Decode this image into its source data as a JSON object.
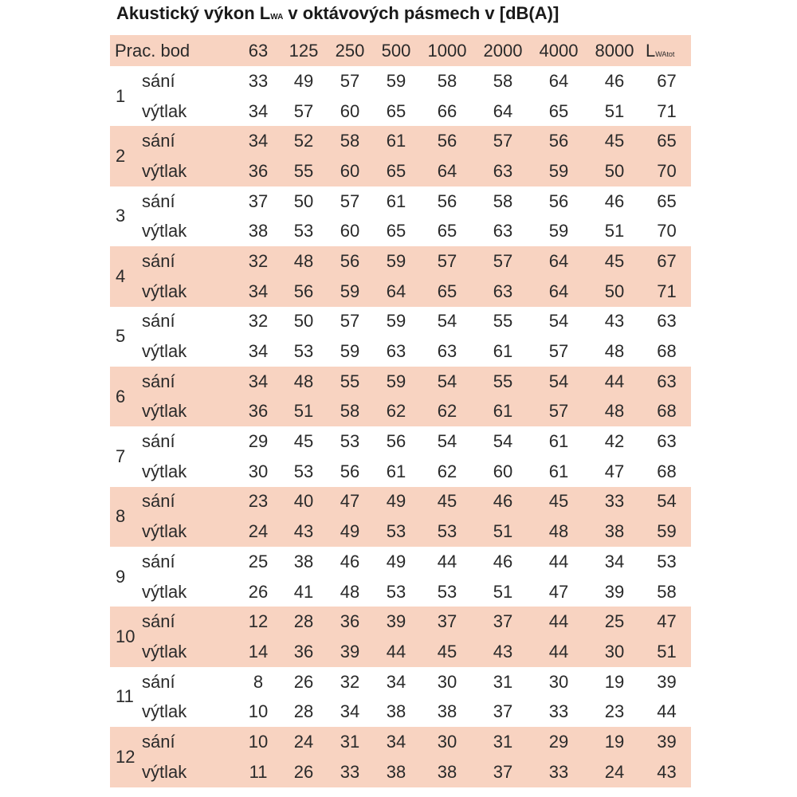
{
  "title": {
    "prefix": "Akustický výkon L",
    "sub": "WA",
    "suffix": " v oktávových pásmech v [dB(A)]"
  },
  "colors": {
    "shade": "#f8d3c1",
    "text": "#2a2a2a"
  },
  "chart_data": {
    "type": "table",
    "title": "Akustický výkon LWA v oktávových pásmech v [dB(A)]",
    "header": {
      "first": "Prac. bod",
      "bands": [
        "63",
        "125",
        "250",
        "500",
        "1000",
        "2000",
        "4000",
        "8000"
      ],
      "total_main": "L",
      "total_sub": "WAtot"
    },
    "rows": [
      {
        "point": "1",
        "rows": [
          {
            "type": "sání",
            "values": [
              33,
              49,
              57,
              59,
              58,
              58,
              64,
              46,
              67
            ]
          },
          {
            "type": "výtlak",
            "values": [
              34,
              57,
              60,
              65,
              66,
              64,
              65,
              51,
              71
            ]
          }
        ]
      },
      {
        "point": "2",
        "rows": [
          {
            "type": "sání",
            "values": [
              34,
              52,
              58,
              61,
              56,
              57,
              56,
              45,
              65
            ]
          },
          {
            "type": "výtlak",
            "values": [
              36,
              55,
              60,
              65,
              64,
              63,
              59,
              50,
              70
            ]
          }
        ]
      },
      {
        "point": "3",
        "rows": [
          {
            "type": "sání",
            "values": [
              37,
              50,
              57,
              61,
              56,
              58,
              56,
              46,
              65
            ]
          },
          {
            "type": "výtlak",
            "values": [
              38,
              53,
              60,
              65,
              65,
              63,
              59,
              51,
              70
            ]
          }
        ]
      },
      {
        "point": "4",
        "rows": [
          {
            "type": "sání",
            "values": [
              32,
              48,
              56,
              59,
              57,
              57,
              64,
              45,
              67
            ]
          },
          {
            "type": "výtlak",
            "values": [
              34,
              56,
              59,
              64,
              65,
              63,
              64,
              50,
              71
            ]
          }
        ]
      },
      {
        "point": "5",
        "rows": [
          {
            "type": "sání",
            "values": [
              32,
              50,
              57,
              59,
              54,
              55,
              54,
              43,
              63
            ]
          },
          {
            "type": "výtlak",
            "values": [
              34,
              53,
              59,
              63,
              63,
              61,
              57,
              48,
              68
            ]
          }
        ]
      },
      {
        "point": "6",
        "rows": [
          {
            "type": "sání",
            "values": [
              34,
              48,
              55,
              59,
              54,
              55,
              54,
              44,
              63
            ]
          },
          {
            "type": "výtlak",
            "values": [
              36,
              51,
              58,
              62,
              62,
              61,
              57,
              48,
              68
            ]
          }
        ]
      },
      {
        "point": "7",
        "rows": [
          {
            "type": "sání",
            "values": [
              29,
              45,
              53,
              56,
              54,
              54,
              61,
              42,
              63
            ]
          },
          {
            "type": "výtlak",
            "values": [
              30,
              53,
              56,
              61,
              62,
              60,
              61,
              47,
              68
            ]
          }
        ]
      },
      {
        "point": "8",
        "rows": [
          {
            "type": "sání",
            "values": [
              23,
              40,
              47,
              49,
              45,
              46,
              45,
              33,
              54
            ]
          },
          {
            "type": "výtlak",
            "values": [
              24,
              43,
              49,
              53,
              53,
              51,
              48,
              38,
              59
            ]
          }
        ]
      },
      {
        "point": "9",
        "rows": [
          {
            "type": "sání",
            "values": [
              25,
              38,
              46,
              49,
              44,
              46,
              44,
              34,
              53
            ]
          },
          {
            "type": "výtlak",
            "values": [
              26,
              41,
              48,
              53,
              53,
              51,
              47,
              39,
              58
            ]
          }
        ]
      },
      {
        "point": "10",
        "rows": [
          {
            "type": "sání",
            "values": [
              12,
              28,
              36,
              39,
              37,
              37,
              44,
              25,
              47
            ]
          },
          {
            "type": "výtlak",
            "values": [
              14,
              36,
              39,
              44,
              45,
              43,
              44,
              30,
              51
            ]
          }
        ]
      },
      {
        "point": "11",
        "rows": [
          {
            "type": "sání",
            "values": [
              8,
              26,
              32,
              34,
              30,
              31,
              30,
              19,
              39
            ]
          },
          {
            "type": "výtlak",
            "values": [
              10,
              28,
              34,
              38,
              38,
              37,
              33,
              23,
              44
            ]
          }
        ]
      },
      {
        "point": "12",
        "rows": [
          {
            "type": "sání",
            "values": [
              10,
              24,
              31,
              34,
              30,
              31,
              29,
              19,
              39
            ]
          },
          {
            "type": "výtlak",
            "values": [
              11,
              26,
              33,
              38,
              38,
              37,
              33,
              24,
              43
            ]
          }
        ]
      }
    ]
  }
}
